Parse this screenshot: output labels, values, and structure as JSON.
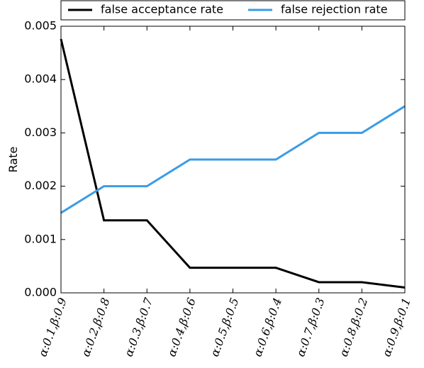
{
  "chart_data": {
    "type": "line",
    "y_label": "Rate",
    "categories": [
      "α:0.1,β:0.9",
      "α:0.2,β:0.8",
      "α:0.3,β:0.7",
      "α:0.4,β:0.6",
      "α:0.5,β:0.5",
      "α:0.6,β:0.4",
      "α:0.7,β:0.3",
      "α:0.8,β:0.2",
      "α:0.9,β:0.1"
    ],
    "series": [
      {
        "name": "false acceptance rate",
        "color": "#000000",
        "values": [
          0.00476,
          0.00136,
          0.00136,
          0.00047,
          0.00047,
          0.00047,
          0.0002,
          0.0002,
          0.0001
        ]
      },
      {
        "name": "false rejection rate",
        "color": "#3a9ce6",
        "values": [
          0.0015,
          0.002,
          0.002,
          0.0025,
          0.0025,
          0.0025,
          0.003,
          0.003,
          0.0035
        ]
      }
    ],
    "ylim": [
      0,
      0.005
    ],
    "yticks": [
      {
        "value": 0,
        "label": "0.000"
      },
      0.001,
      0.002,
      0.003,
      0.004,
      0.005
    ],
    "legend": "top",
    "grid": false
  }
}
